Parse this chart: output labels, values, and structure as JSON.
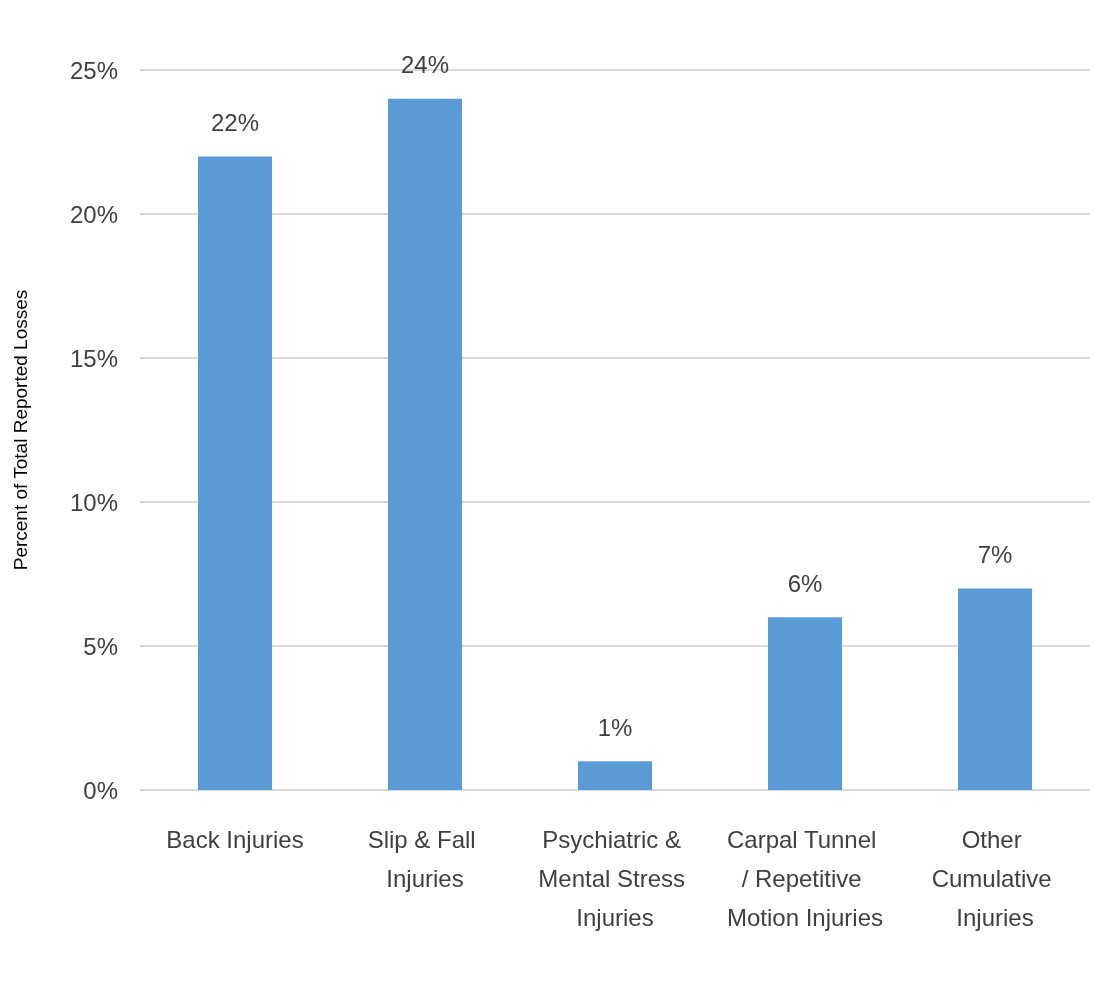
{
  "chart_data": {
    "type": "bar",
    "ylabel": "Percent of Total Reported Losses",
    "categories": [
      "Back Injuries",
      "Slip & Fall Injuries",
      "Psychiatric & Mental Stress Injuries",
      "Carpal Tunnel / Repetitive Motion Injuries",
      "Other Cumulative Injuries"
    ],
    "values": [
      22,
      24,
      1,
      6,
      7
    ],
    "value_labels": [
      "22%",
      "24%",
      "1%",
      "6%",
      "7%"
    ],
    "color": "#5b9bd5",
    "ylim": [
      0,
      25
    ],
    "yticks": [
      {
        "value": 0,
        "label": "0%"
      },
      {
        "value": 5,
        "label": "5%"
      },
      {
        "value": 10,
        "label": "10%"
      },
      {
        "value": 15,
        "label": "15%"
      },
      {
        "value": 20,
        "label": "20%"
      },
      {
        "value": 25,
        "label": "25%"
      }
    ],
    "grid": "y"
  }
}
